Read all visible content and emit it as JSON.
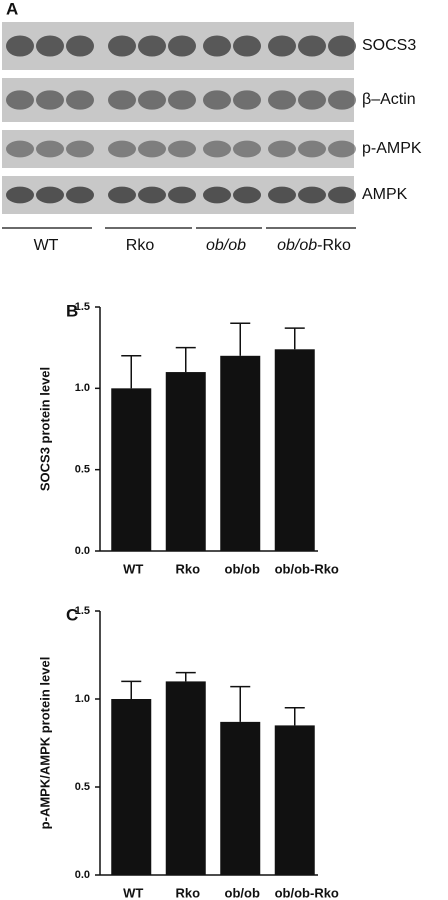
{
  "panel_a": {
    "label": "A",
    "rows": [
      "SOCS3",
      "β–Actin",
      "p-AMPK",
      "AMPK"
    ],
    "groups": [
      [
        {
          "text": "WT",
          "italic": false
        }
      ],
      [
        {
          "text": "Rko",
          "italic": false
        }
      ],
      [
        {
          "text": "ob/ob",
          "italic": true
        }
      ],
      [
        {
          "text": "ob/ob",
          "italic": true
        },
        {
          "text": "-Rko",
          "italic": false
        }
      ]
    ]
  },
  "chart_data": [
    {
      "type": "bar",
      "panel_label": "B",
      "y_label": "SOCS3 protein level",
      "categories": [
        "WT",
        "Rko",
        "ob/ob",
        "ob/ob-Rko"
      ],
      "values": [
        1.0,
        1.1,
        1.2,
        1.24
      ],
      "errors": [
        0.2,
        0.15,
        0.2,
        0.13
      ],
      "color": "#111111",
      "ylim": [
        0,
        1.5
      ],
      "yticks": [
        {
          "value": 0,
          "label": "0.0"
        },
        0.5,
        {
          "value": 1,
          "label": "1.0"
        },
        1.5
      ]
    },
    {
      "type": "bar",
      "panel_label": "C",
      "y_label": "p-AMPK/AMPK protein level",
      "categories": [
        "WT",
        "Rko",
        "ob/ob",
        "ob/ob-Rko"
      ],
      "values": [
        1.0,
        1.1,
        0.87,
        0.85
      ],
      "errors": [
        0.1,
        0.05,
        0.2,
        0.1
      ],
      "color": "#111111",
      "ylim": [
        0,
        1.5
      ],
      "yticks": [
        {
          "value": 0,
          "label": "0.0"
        },
        0.5,
        {
          "value": 1,
          "label": "1.0"
        },
        1.5
      ]
    }
  ]
}
